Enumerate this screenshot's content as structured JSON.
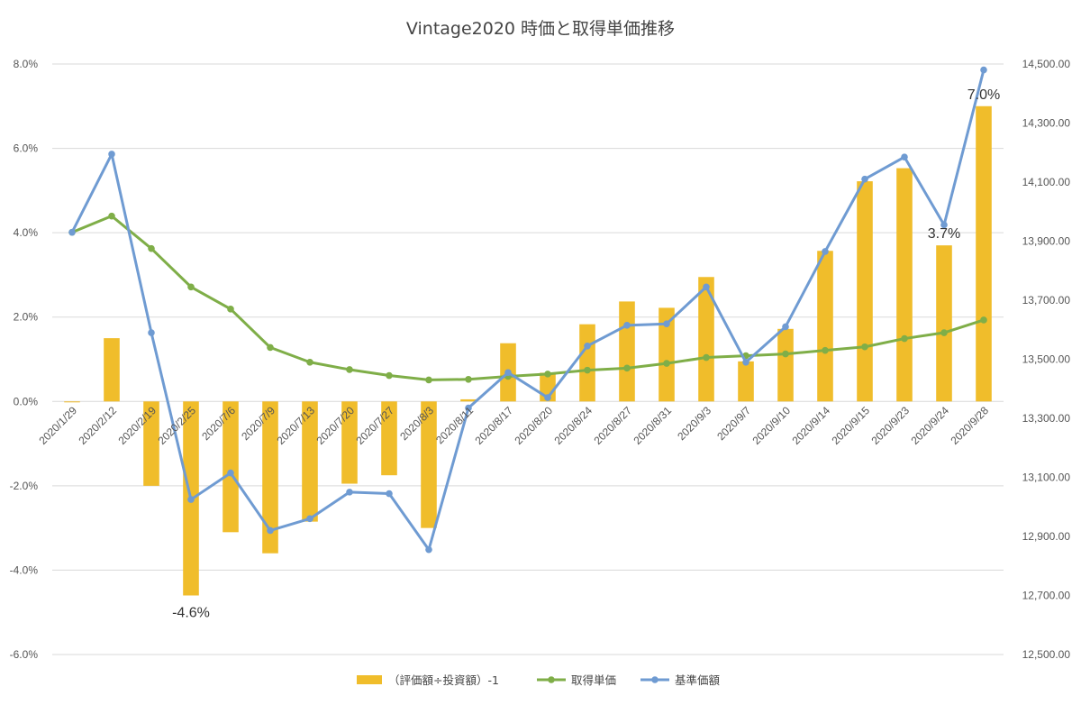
{
  "chart_data": {
    "type": "bar",
    "title": "Vintage2020 時価と取得単価推移",
    "categories": [
      "2020/1/29",
      "2020/2/12",
      "2020/2/19",
      "2020/2/25",
      "2020/7/6",
      "2020/7/9",
      "2020/7/13",
      "2020/7/20",
      "2020/7/27",
      "2020/8/3",
      "2020/8/11",
      "2020/8/17",
      "2020/8/20",
      "2020/8/24",
      "2020/8/27",
      "2020/8/31",
      "2020/9/3",
      "2020/9/7",
      "2020/9/10",
      "2020/9/14",
      "2020/9/15",
      "2020/9/23",
      "2020/9/24",
      "2020/9/28"
    ],
    "y_left": {
      "min": -0.06,
      "max": 0.08,
      "step": 0.02,
      "tick_labels": [
        "-6.0%",
        "-4.0%",
        "-2.0%",
        "0.0%",
        "2.0%",
        "4.0%",
        "6.0%",
        "8.0%"
      ]
    },
    "y_right": {
      "min": 12500,
      "max": 14500,
      "step": 200,
      "tick_labels": [
        "12,500.00",
        "12,700.00",
        "12,900.00",
        "13,100.00",
        "13,300.00",
        "13,500.00",
        "13,700.00",
        "13,900.00",
        "14,100.00",
        "14,300.00",
        "14,500.00"
      ]
    },
    "grid": true,
    "legend_position": "bottom",
    "series": [
      {
        "name": "（評価額÷投資額）-1",
        "kind": "bar",
        "axis": "left",
        "color": "#f0bd2b",
        "values": [
          0.0,
          0.015,
          -0.02,
          -0.046,
          -0.031,
          -0.036,
          -0.0285,
          -0.0195,
          -0.0175,
          -0.03,
          0.0005,
          0.0138,
          0.0068,
          0.0183,
          0.0237,
          0.0222,
          0.0295,
          0.0095,
          0.0172,
          0.0357,
          0.0522,
          0.0553,
          0.037,
          0.07
        ]
      },
      {
        "name": "取得単価",
        "kind": "line",
        "axis": "right",
        "color": "#7fae48",
        "values": [
          13930,
          13985,
          13875,
          13745,
          13670,
          13540,
          13490,
          13465,
          13445,
          13430,
          13432,
          13442,
          13450,
          13463,
          13470,
          13486,
          13506,
          13512,
          13518,
          13530,
          13542,
          13570,
          13590,
          13633
        ]
      },
      {
        "name": "基準価額",
        "kind": "line",
        "axis": "right",
        "color": "#6f9bd2",
        "values": [
          13930,
          14195,
          13590,
          13025,
          13115,
          12920,
          12960,
          13050,
          13045,
          12855,
          13335,
          13455,
          13370,
          13545,
          13615,
          13620,
          13745,
          13490,
          13610,
          13865,
          14110,
          14185,
          13955,
          14480
        ]
      }
    ],
    "annotations": [
      {
        "text": "-4.6%",
        "index": 3,
        "series": 0,
        "placement": "below"
      },
      {
        "text": "3.7%",
        "index": 22,
        "series": 0,
        "placement": "above"
      },
      {
        "text": "7.0%",
        "index": 23,
        "series": 0,
        "placement": "above"
      }
    ]
  }
}
